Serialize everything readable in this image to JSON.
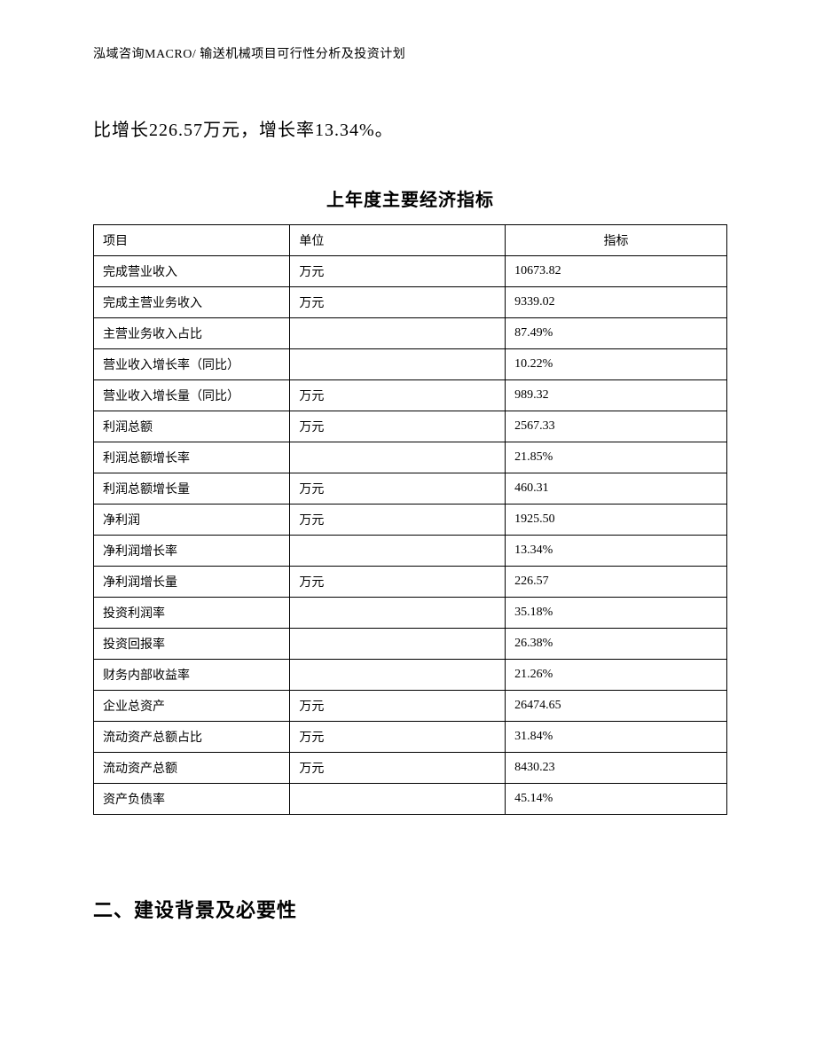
{
  "header": "泓域咨询MACRO/ 输送机械项目可行性分析及投资计划",
  "intro": "比增长226.57万元，增长率13.34%。",
  "table": {
    "title": "上年度主要经济指标",
    "columns": [
      "项目",
      "单位",
      "指标"
    ],
    "rows": [
      [
        "完成营业收入",
        "万元",
        "10673.82"
      ],
      [
        "完成主营业务收入",
        "万元",
        "9339.02"
      ],
      [
        "主营业务收入占比",
        "",
        "87.49%"
      ],
      [
        "营业收入增长率（同比）",
        "",
        "10.22%"
      ],
      [
        "营业收入增长量（同比）",
        "万元",
        "989.32"
      ],
      [
        "利润总额",
        "万元",
        "2567.33"
      ],
      [
        "利润总额增长率",
        "",
        "21.85%"
      ],
      [
        "利润总额增长量",
        "万元",
        "460.31"
      ],
      [
        "净利润",
        "万元",
        "1925.50"
      ],
      [
        "净利润增长率",
        "",
        "13.34%"
      ],
      [
        "净利润增长量",
        "万元",
        "226.57"
      ],
      [
        "投资利润率",
        "",
        "35.18%"
      ],
      [
        "投资回报率",
        "",
        "26.38%"
      ],
      [
        "财务内部收益率",
        "",
        "21.26%"
      ],
      [
        "企业总资产",
        "万元",
        "26474.65"
      ],
      [
        "流动资产总额占比",
        "万元",
        "31.84%"
      ],
      [
        "流动资产总额",
        "万元",
        "8430.23"
      ],
      [
        "资产负债率",
        "",
        "45.14%"
      ]
    ]
  },
  "section_heading": "二、建设背景及必要性"
}
